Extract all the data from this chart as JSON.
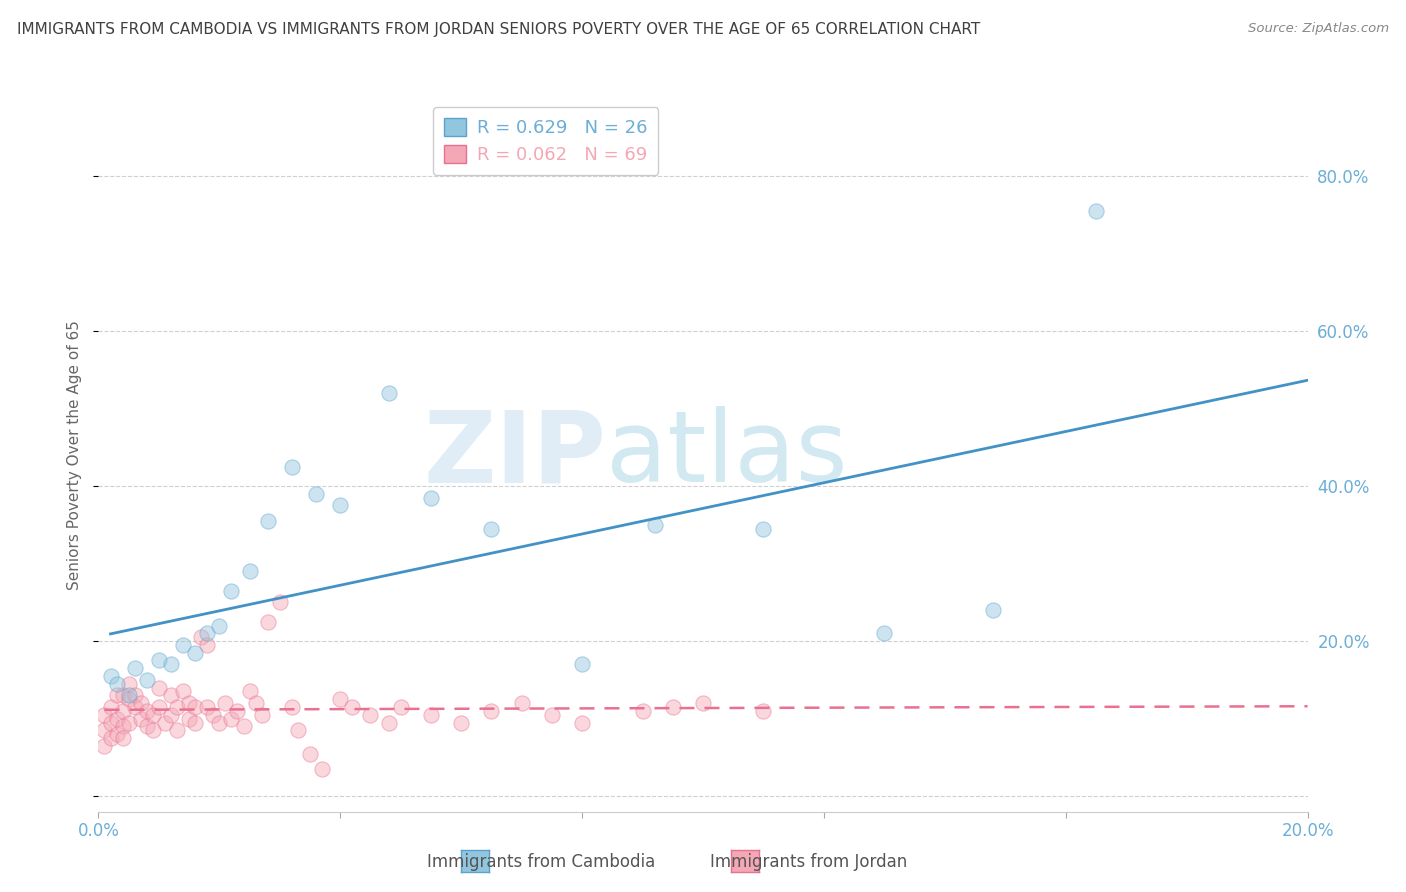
{
  "title": "IMMIGRANTS FROM CAMBODIA VS IMMIGRANTS FROM JORDAN SENIORS POVERTY OVER THE AGE OF 65 CORRELATION CHART",
  "source": "Source: ZipAtlas.com",
  "ylabel": "Seniors Poverty Over the Age of 65",
  "xlim": [
    0.0,
    0.2
  ],
  "ylim": [
    -0.02,
    0.9
  ],
  "ytick_positions": [
    0.0,
    0.2,
    0.4,
    0.6,
    0.8
  ],
  "yticklabels_right": [
    "",
    "20.0%",
    "40.0%",
    "60.0%",
    "80.0%"
  ],
  "xtick_positions": [
    0.0,
    0.04,
    0.08,
    0.12,
    0.16,
    0.2
  ],
  "xticklabels": [
    "0.0%",
    "",
    "",
    "",
    "",
    "20.0%"
  ],
  "cambodia_R": 0.629,
  "cambodia_N": 26,
  "jordan_R": 0.062,
  "jordan_N": 69,
  "cambodia_color": "#92c5de",
  "jordan_color": "#f4a7b4",
  "cambodia_edge_color": "#5ba3cc",
  "jordan_edge_color": "#e87090",
  "cambodia_x": [
    0.002,
    0.003,
    0.005,
    0.006,
    0.008,
    0.01,
    0.012,
    0.014,
    0.016,
    0.018,
    0.02,
    0.022,
    0.025,
    0.028,
    0.032,
    0.036,
    0.04,
    0.048,
    0.055,
    0.065,
    0.08,
    0.092,
    0.11,
    0.13,
    0.148,
    0.165
  ],
  "cambodia_y": [
    0.155,
    0.145,
    0.13,
    0.165,
    0.15,
    0.175,
    0.17,
    0.195,
    0.185,
    0.21,
    0.22,
    0.265,
    0.29,
    0.355,
    0.425,
    0.39,
    0.375,
    0.52,
    0.385,
    0.345,
    0.17,
    0.35,
    0.345,
    0.21,
    0.24,
    0.755
  ],
  "jordan_x": [
    0.001,
    0.001,
    0.001,
    0.002,
    0.002,
    0.002,
    0.003,
    0.003,
    0.003,
    0.004,
    0.004,
    0.004,
    0.004,
    0.005,
    0.005,
    0.005,
    0.006,
    0.006,
    0.007,
    0.007,
    0.008,
    0.008,
    0.009,
    0.009,
    0.01,
    0.01,
    0.011,
    0.012,
    0.012,
    0.013,
    0.013,
    0.014,
    0.015,
    0.015,
    0.016,
    0.016,
    0.017,
    0.018,
    0.018,
    0.019,
    0.02,
    0.021,
    0.022,
    0.023,
    0.024,
    0.025,
    0.026,
    0.027,
    0.028,
    0.03,
    0.032,
    0.033,
    0.035,
    0.037,
    0.04,
    0.042,
    0.045,
    0.048,
    0.05,
    0.055,
    0.06,
    0.065,
    0.07,
    0.075,
    0.08,
    0.09,
    0.095,
    0.1,
    0.11
  ],
  "jordan_y": [
    0.105,
    0.085,
    0.065,
    0.115,
    0.095,
    0.075,
    0.13,
    0.1,
    0.08,
    0.09,
    0.11,
    0.075,
    0.13,
    0.125,
    0.095,
    0.145,
    0.13,
    0.115,
    0.12,
    0.1,
    0.11,
    0.09,
    0.105,
    0.085,
    0.115,
    0.14,
    0.095,
    0.105,
    0.13,
    0.085,
    0.115,
    0.135,
    0.1,
    0.12,
    0.095,
    0.115,
    0.205,
    0.195,
    0.115,
    0.105,
    0.095,
    0.12,
    0.1,
    0.11,
    0.09,
    0.135,
    0.12,
    0.105,
    0.225,
    0.25,
    0.115,
    0.085,
    0.055,
    0.035,
    0.125,
    0.115,
    0.105,
    0.095,
    0.115,
    0.105,
    0.095,
    0.11,
    0.12,
    0.105,
    0.095,
    0.11,
    0.115,
    0.12,
    0.11
  ],
  "watermark_zip": "ZIP",
  "watermark_atlas": "atlas",
  "background_color": "#ffffff",
  "grid_color": "#d0d0d0",
  "title_color": "#404040",
  "axis_color": "#6baed6",
  "marker_size": 120,
  "marker_alpha": 0.45,
  "line_color_cambodia": "#4292c6",
  "line_color_jordan": "#e87090"
}
